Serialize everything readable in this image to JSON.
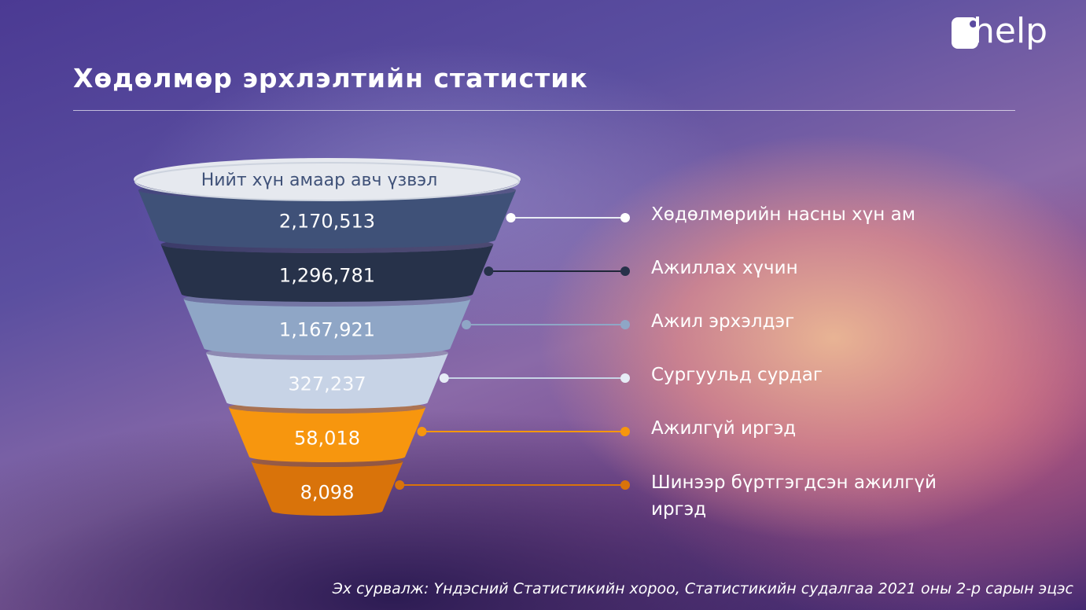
{
  "header": {
    "title": "Хөдөлмөр эрхлэлтийн статистик",
    "logo_text": "help"
  },
  "funnel": {
    "top_label": "Нийт хүн амаар авч үзвэл"
  },
  "chart_data": {
    "type": "funnel",
    "title": "Хөдөлмөр эрхлэлтийн статистик",
    "categories": [
      "Хөдөлмөрийн насны хүн ам",
      "Ажиллах хүчин",
      "Ажил эрхэлдэг",
      "Сургуульд сурдаг",
      "Ажилгүй иргэд",
      "Шинээр бүртгэгдсэн ажилгүй иргэд"
    ],
    "values": [
      2170513,
      1296781,
      1167921,
      327237,
      58018,
      8098
    ],
    "value_labels": [
      "2,170,513",
      "1,296,781",
      "1,167,921",
      "327,237",
      "58,018",
      "8,098"
    ],
    "colors": [
      "#3f5178",
      "#27324a",
      "#8fa6c6",
      "#c7d3e6",
      "#f7960e",
      "#d9730a"
    ]
  },
  "footer": {
    "source": "Эх сурвалж: Үндэсний Статистикийн хороо, Статистикийн судалгаа 2021 оны 2-р сарын эцэс"
  }
}
